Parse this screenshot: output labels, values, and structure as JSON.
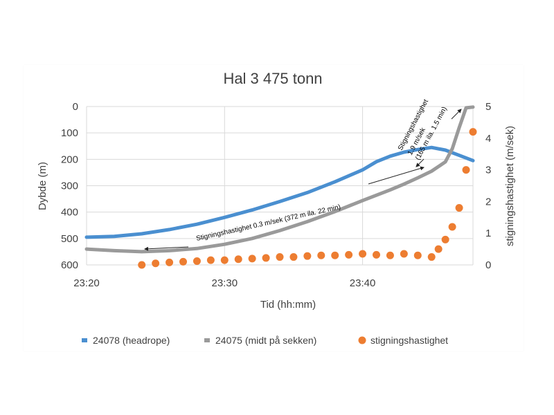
{
  "chart_data": {
    "type": "line",
    "title": "Hal 3 475 tonn",
    "xlabel": "Tid (hh:mm)",
    "ylabel": "Dybde (m)",
    "y2label": "stigningshastighet (m/sek)",
    "xlim": [
      "23:20",
      "23:48"
    ],
    "ylim": [
      600,
      0
    ],
    "y2lim": [
      0,
      5
    ],
    "x_ticks": [
      "23:20",
      "23:30",
      "23:40"
    ],
    "y_ticks": [
      0,
      100,
      200,
      300,
      400,
      500,
      600
    ],
    "y2_ticks": [
      0,
      1,
      2,
      3,
      4,
      5
    ],
    "grid": true,
    "legend_position": "bottom",
    "series": [
      {
        "name": "24078 (headrope)",
        "axis": "left",
        "style": "line",
        "color": "#4a8fd0",
        "x": [
          "23:20",
          "23:22",
          "23:24",
          "23:26",
          "23:28",
          "23:30",
          "23:32",
          "23:34",
          "23:36",
          "23:38",
          "23:40",
          "23:41",
          "23:42",
          "23:43",
          "23:44",
          "23:45",
          "23:46",
          "23:47",
          "23:48"
        ],
        "y": [
          495,
          492,
          482,
          466,
          446,
          420,
          392,
          360,
          326,
          285,
          240,
          209,
          188,
          173,
          163,
          155,
          165,
          185,
          205
        ]
      },
      {
        "name": "24075 (midt på sekken)",
        "axis": "left",
        "style": "line",
        "color": "#9a9a9a",
        "x": [
          "23:20",
          "23:22",
          "23:24",
          "23:26",
          "23:28",
          "23:30",
          "23:32",
          "23:34",
          "23:36",
          "23:38",
          "23:40",
          "23:42",
          "23:43",
          "23:44",
          "23:45",
          "23:46",
          "23:46.5",
          "23:47",
          "23:47.5",
          "23:48"
        ],
        "y": [
          540,
          546,
          550,
          546,
          538,
          522,
          500,
          470,
          436,
          398,
          356,
          316,
          294,
          270,
          245,
          210,
          160,
          80,
          5,
          2
        ]
      },
      {
        "name": "stigningshastighet",
        "axis": "right",
        "style": "scatter",
        "color": "#ed7d31",
        "x": [
          "23:24",
          "23:25",
          "23:26",
          "23:27",
          "23:28",
          "23:29",
          "23:30",
          "23:31",
          "23:32",
          "23:33",
          "23:34",
          "23:35",
          "23:36",
          "23:37",
          "23:38",
          "23:39",
          "23:40",
          "23:41",
          "23:42",
          "23:43",
          "23:44",
          "23:45",
          "23:45.5",
          "23:46",
          "23:46.5",
          "23:47",
          "23:47.5",
          "23:48"
        ],
        "y": [
          0.0,
          0.05,
          0.08,
          0.1,
          0.12,
          0.15,
          0.15,
          0.18,
          0.2,
          0.22,
          0.25,
          0.25,
          0.28,
          0.3,
          0.3,
          0.32,
          0.35,
          0.32,
          0.3,
          0.35,
          0.3,
          0.25,
          0.5,
          0.8,
          1.2,
          1.8,
          3.0,
          4.2
        ]
      }
    ],
    "annotations": [
      {
        "text": "Stigningshastighet 0.3 m/sek (372 m ila. 22 min)"
      },
      {
        "text": "Stigningshastighet"
      },
      {
        "text": "1.9 m/sek"
      },
      {
        "text": "(165 m ila. 1.5 min)"
      }
    ]
  }
}
